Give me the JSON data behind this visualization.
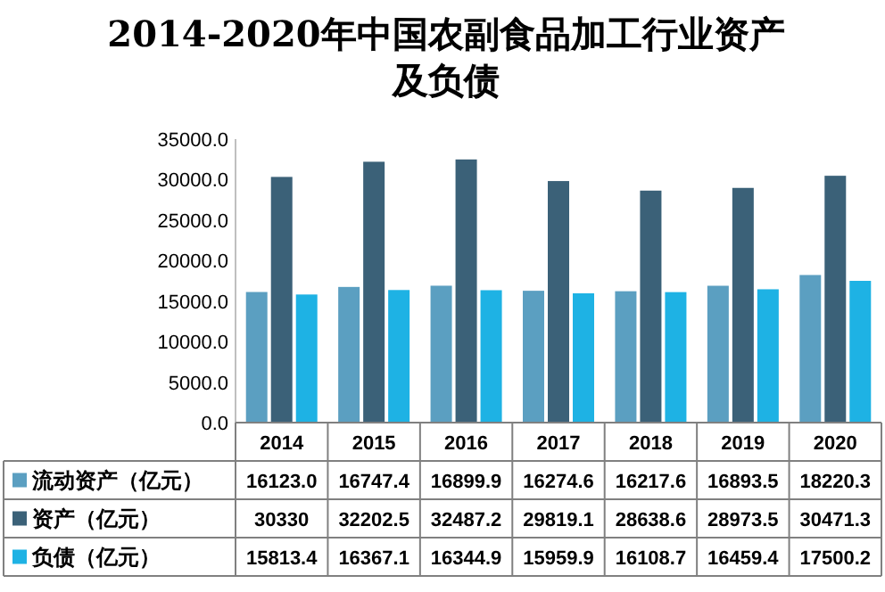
{
  "chart_data": {
    "type": "bar",
    "title": "2014-2020年中国农副食品加工行业资产及负债",
    "categories": [
      "2014",
      "2015",
      "2016",
      "2017",
      "2018",
      "2019",
      "2020"
    ],
    "series": [
      {
        "name": "流动资产（亿元）",
        "color": "#5b9fc1",
        "values": [
          16123.0,
          16747.4,
          16899.9,
          16274.6,
          16217.6,
          16893.5,
          18220.3
        ],
        "value_labels": [
          "16123.0",
          "16747.4",
          "16899.9",
          "16274.6",
          "16217.6",
          "16893.5",
          "18220.3"
        ]
      },
      {
        "name": "资产（亿元）",
        "color": "#3b6178",
        "values": [
          30330,
          32202.5,
          32487.2,
          29819.1,
          28638.6,
          28973.5,
          30471.3
        ],
        "value_labels": [
          "30330",
          "32202.5",
          "32487.2",
          "29819.1",
          "28638.6",
          "28973.5",
          "30471.3"
        ]
      },
      {
        "name": "负债（亿元）",
        "color": "#1eb2e4",
        "values": [
          15813.4,
          16367.1,
          16344.9,
          15959.9,
          16108.7,
          16459.4,
          17500.2
        ],
        "value_labels": [
          "15813.4",
          "16367.1",
          "16344.9",
          "15959.9",
          "16108.7",
          "16459.4",
          "17500.2"
        ]
      }
    ],
    "ylim": [
      0,
      35000
    ],
    "yticks": [
      {
        "value": 0,
        "label": "0.0"
      },
      {
        "value": 5000,
        "label": "5000.0"
      },
      {
        "value": 10000,
        "label": "10000.0"
      },
      {
        "value": 15000,
        "label": "15000.0"
      },
      {
        "value": 20000,
        "label": "20000.0"
      },
      {
        "value": 25000,
        "label": "25000.0"
      },
      {
        "value": 30000,
        "label": "30000.0"
      },
      {
        "value": 35000,
        "label": "35000.0"
      }
    ],
    "legend": "bottom"
  }
}
